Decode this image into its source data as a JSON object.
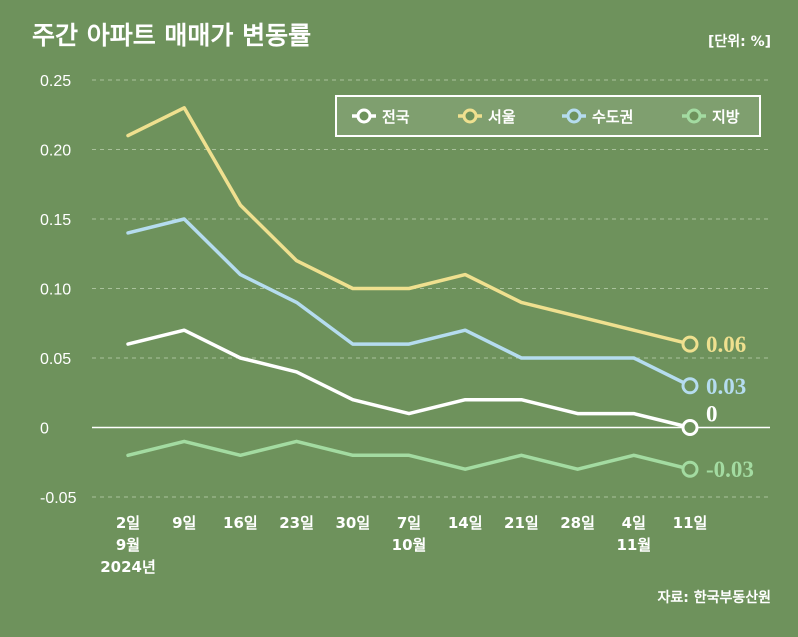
{
  "chart_data": {
    "type": "line",
    "title": "주간 아파트 매매가 변동률",
    "unit": "[단위: %]",
    "source": "자료: 한국부동산원",
    "ylim": [
      -0.05,
      0.25
    ],
    "yticks": [
      "0.25",
      "0.20",
      "0.15",
      "0.10",
      "0.05",
      "0",
      "-0.05"
    ],
    "ytick_values": [
      0.25,
      0.2,
      0.15,
      0.1,
      0.05,
      0,
      -0.05
    ],
    "categories": [
      [
        "2일",
        "9월",
        "2024년"
      ],
      [
        "9일"
      ],
      [
        "16일"
      ],
      [
        "23일"
      ],
      [
        "30일"
      ],
      [
        "7일",
        "10월"
      ],
      [
        "14일"
      ],
      [
        "21일"
      ],
      [
        "28일"
      ],
      [
        "4일",
        "11월"
      ],
      [
        "11일"
      ]
    ],
    "series": [
      {
        "name": "전국",
        "color": "#ffffff",
        "values": [
          0.06,
          0.07,
          0.05,
          0.04,
          0.02,
          0.01,
          0.02,
          0.02,
          0.01,
          0.01,
          0.0
        ],
        "end_label": "0"
      },
      {
        "name": "서울",
        "color": "#efe08f",
        "values": [
          0.21,
          0.23,
          0.16,
          0.12,
          0.1,
          0.1,
          0.11,
          0.09,
          0.08,
          0.07,
          0.06
        ],
        "end_label": "0.06"
      },
      {
        "name": "수도권",
        "color": "#b5dcef",
        "values": [
          0.14,
          0.15,
          0.11,
          0.09,
          0.06,
          0.06,
          0.07,
          0.05,
          0.05,
          0.05,
          0.03
        ],
        "end_label": "0.03"
      },
      {
        "name": "지방",
        "color": "#a3dba1",
        "values": [
          -0.02,
          -0.01,
          -0.02,
          -0.01,
          -0.02,
          -0.02,
          -0.03,
          -0.02,
          -0.03,
          -0.02,
          -0.03
        ],
        "end_label": "-0.03"
      }
    ],
    "legend_position": "top-right"
  }
}
